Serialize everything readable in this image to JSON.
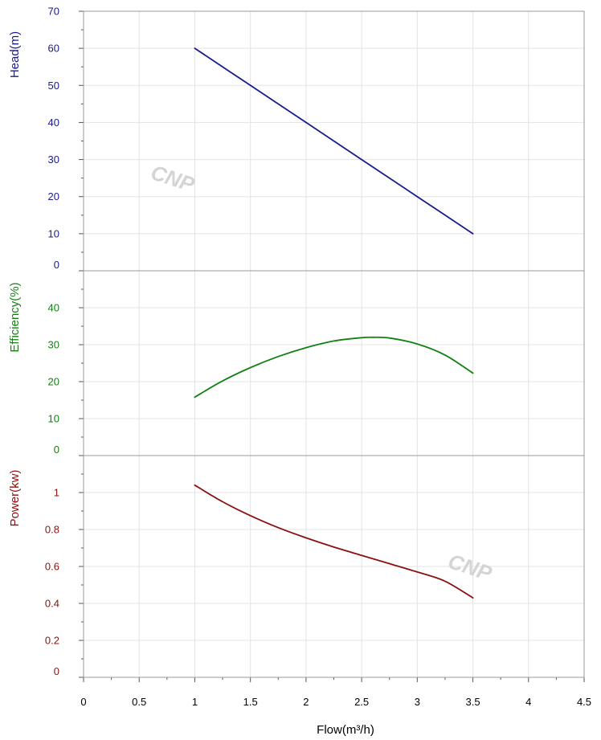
{
  "chart_data": {
    "type": "line",
    "xlabel": "Flow(m³/h)",
    "x_ticks": [
      "0",
      "0.5",
      "1",
      "1.5",
      "2",
      "2.5",
      "3",
      "3.5",
      "4",
      "4.5"
    ],
    "xlim": [
      0,
      4.5
    ],
    "grid": true,
    "watermark": "CNP",
    "panels": [
      {
        "id": "head",
        "ylabel": "Head(m)",
        "color": "#1a1a8c",
        "ylim": [
          0,
          70
        ],
        "y_ticks": [
          "0",
          "10",
          "20",
          "30",
          "40",
          "50",
          "60",
          "70"
        ],
        "series": {
          "x": [
            1,
            1.5,
            2,
            2.5,
            3,
            3.5
          ],
          "values": [
            60,
            50,
            40,
            30,
            20,
            10
          ]
        }
      },
      {
        "id": "efficiency",
        "ylabel": "Efficiency(%)",
        "color": "#138013",
        "ylim": [
          0,
          50
        ],
        "y_ticks": [
          "0",
          "10",
          "20",
          "30",
          "40"
        ],
        "series": {
          "x": [
            1,
            1.25,
            1.5,
            1.75,
            2,
            2.25,
            2.5,
            2.6,
            2.75,
            3,
            3.25,
            3.5
          ],
          "values": [
            15.8,
            20.2,
            23.8,
            26.8,
            29.2,
            31.0,
            31.9,
            32.0,
            31.8,
            30.2,
            27.2,
            22.3
          ]
        }
      },
      {
        "id": "power",
        "ylabel": "Power(kw)",
        "color": "#8b1010",
        "ylim": [
          0,
          1.2
        ],
        "y_ticks": [
          "0",
          "0.2",
          "0.4",
          "0.6",
          "0.8",
          "1"
        ],
        "series": {
          "x": [
            1,
            1.25,
            1.5,
            1.75,
            2,
            2.25,
            2.5,
            2.75,
            3,
            3.25,
            3.5
          ],
          "values": [
            1.04,
            0.95,
            0.875,
            0.81,
            0.755,
            0.705,
            0.66,
            0.615,
            0.57,
            0.52,
            0.43
          ]
        }
      }
    ]
  }
}
